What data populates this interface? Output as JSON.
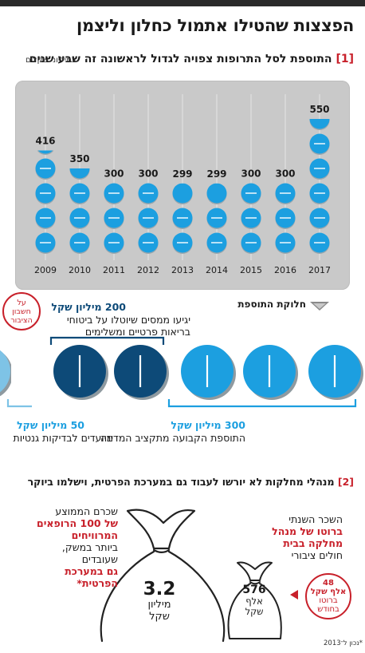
{
  "title": "הפצצות שהטילו אתמול כחלון וליצמן",
  "section1": {
    "number": "[1]",
    "heading": "התוספת לסל התרופות צפויה לגדול לראשונה זה שבע שנים",
    "unit": "במיליוני שקלים"
  },
  "chart_data": {
    "type": "bar",
    "categories": [
      "2009",
      "2010",
      "2011",
      "2012",
      "2013",
      "2014",
      "2015",
      "2016",
      "2017"
    ],
    "values": [
      416,
      350,
      300,
      300,
      299,
      299,
      300,
      300,
      550
    ],
    "value_labels": [
      "416",
      "350",
      "300",
      "300",
      "299",
      "299",
      "300",
      "300",
      "550"
    ],
    "unit": "במיליוני שקלים"
  },
  "distribution": {
    "header": "חלוקת התוספת",
    "public_badge": [
      "על",
      "חשבון",
      "הציבור"
    ],
    "amount_200": "200 מיליון שקל",
    "desc_200_line1": "יגיעו ממסים שיוטלו על ביטוחי",
    "desc_200_line2": "בריאות פרטיים ומשלימים",
    "amount_300": "300 מיליון שקל",
    "desc_300": "התוספת הקבועה מתקציב המדינה",
    "amount_50": "50 מיליון שקל",
    "desc_50": "מיועדים לבדיקות גנטיות"
  },
  "section2": {
    "number": "[2]",
    "heading": "מנהלי מחלקות לא יורשו לעבוד גם במערכת הפרטית, וישלמו ביוקר"
  },
  "salaries": {
    "big_bag_value": "3.2",
    "big_bag_unit_line1": "מיליון",
    "big_bag_unit_line2": "שקל",
    "small_bag_value": "576",
    "small_bag_unit_line1": "אלף",
    "small_bag_unit_line2": "שקל",
    "left_text": [
      "שכרם הממוצע",
      "של 100 הרופאים",
      "המרוויחים",
      "ביותר במשק,",
      "שעובדים",
      "גם במערכת",
      "הפרטית*"
    ],
    "right_text": [
      "השכר השנתי",
      "ברוטו של מנהל",
      "מחלקה בבית",
      "חולים ציבורי"
    ],
    "badge_48": [
      "48",
      "אלף שקל",
      "ברוטו",
      "בחודש"
    ]
  },
  "footnote": "*נכון ל־2013",
  "colors": {
    "red": "#c8202a",
    "light_blue": "#1c9fe0",
    "dark_blue": "#0d4a78",
    "pale_blue": "#7ec3e6",
    "panel": "#c9c9c9"
  }
}
